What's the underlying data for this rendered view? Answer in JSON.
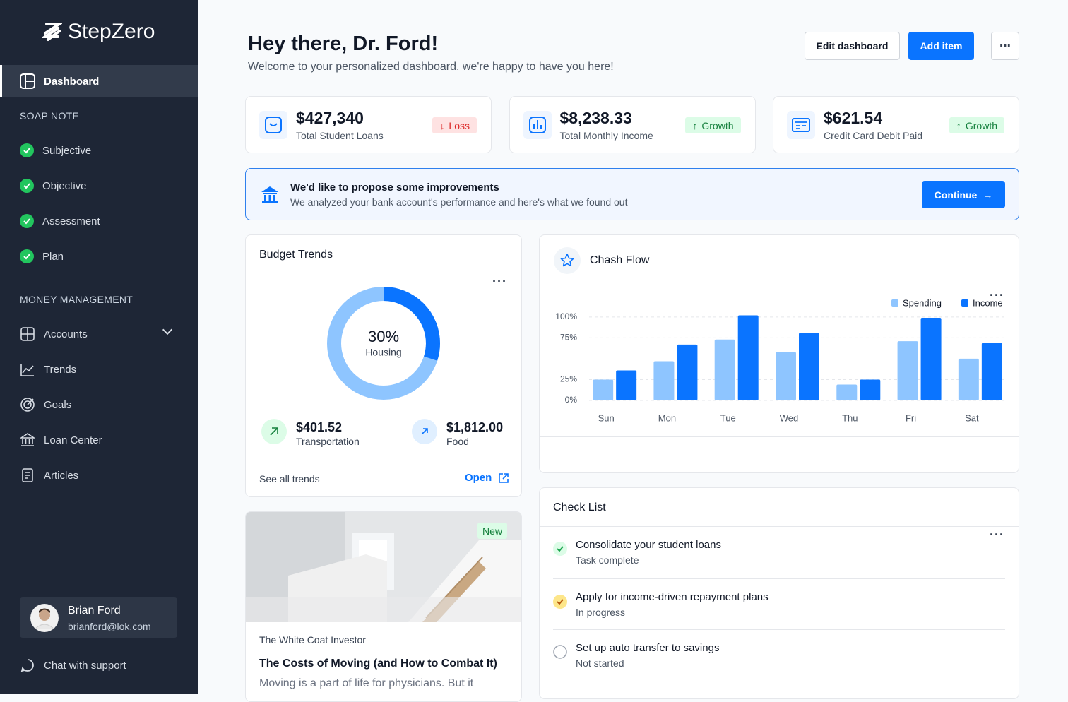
{
  "sidebar": {
    "brand": "StepZero",
    "active": "Dashboard",
    "sections": [
      {
        "heading": "SOAP NOTE",
        "items": [
          "Subjective",
          "Objective",
          "Assessment",
          "Plan"
        ]
      },
      {
        "heading": "MONEY MANAGEMENT",
        "items": [
          "Accounts",
          "Trends",
          "Goals",
          "Loan Center",
          "Articles"
        ]
      }
    ],
    "user": {
      "name": "Brian Ford",
      "email": "brianford@lok.com"
    },
    "support": "Chat with support"
  },
  "header": {
    "title": "Hey there, Dr. Ford!",
    "subtitle": "Welcome to your personalized dashboard, we're happy to have you here!",
    "buttons": [
      "Edit dashboard",
      "Add item"
    ]
  },
  "stats": [
    {
      "value": "$427,340",
      "label": "Total Student Loans",
      "badge": "Loss"
    },
    {
      "value": "$8,238.33",
      "label": "Total Monthly Income",
      "badge": "Growth"
    },
    {
      "value": "$621.54",
      "label": "Credit Card Debit Paid",
      "badge": "Growth"
    }
  ],
  "banner": {
    "title": "We'd like to propose some improvements",
    "text": "We analyzed your bank account's performance and here's what we found out",
    "button": "Continue"
  },
  "budget": {
    "items": [
      {
        "value": "$401.52",
        "label": "Transportation"
      },
      {
        "value": "$1,812.00",
        "label": "Food"
      }
    ],
    "footer": "See all trends",
    "link": "Open"
  },
  "article": {
    "badge": "New",
    "source": "The White Coat Investor",
    "title": "The Costs of Moving (and How to Combat It)",
    "excerpt": "Moving is a part of life for physicians. But it"
  },
  "checklist": {
    "title": "Check List",
    "items": [
      {
        "task": "Consolidate your student loans",
        "status": "Task complete"
      },
      {
        "task": "Apply for income-driven repayment plans",
        "status": "In progress"
      },
      {
        "task": "Set up auto transfer to savings",
        "status": "Not started"
      }
    ]
  },
  "chart_data": [
    {
      "type": "donut",
      "title": "Budget Trends",
      "categories": [
        "Housing"
      ],
      "values": [
        30
      ],
      "value_labels": [
        "30%"
      ],
      "color": "#0a74ff"
    },
    {
      "type": "bar",
      "title": "Chash Flow",
      "categories": [
        "Sun",
        "Mon",
        "Tue",
        "Wed",
        "Thu",
        "Fri",
        "Sat"
      ],
      "series": [
        {
          "name": "Spending",
          "color": "#8ec5ff",
          "values": [
            25,
            47,
            73,
            58,
            19,
            71,
            50
          ]
        },
        {
          "name": "Income",
          "color": "#0a74ff",
          "values": [
            36,
            67,
            102,
            81,
            25,
            99,
            69
          ]
        }
      ],
      "ylim": [
        0,
        110
      ],
      "yticks": [
        {
          "value": 0,
          "label": "0%"
        },
        {
          "value": 25,
          "label": "25%"
        },
        {
          "value": 75,
          "label": "75%"
        },
        {
          "value": 100,
          "label": "100%"
        }
      ],
      "grid": true
    }
  ]
}
